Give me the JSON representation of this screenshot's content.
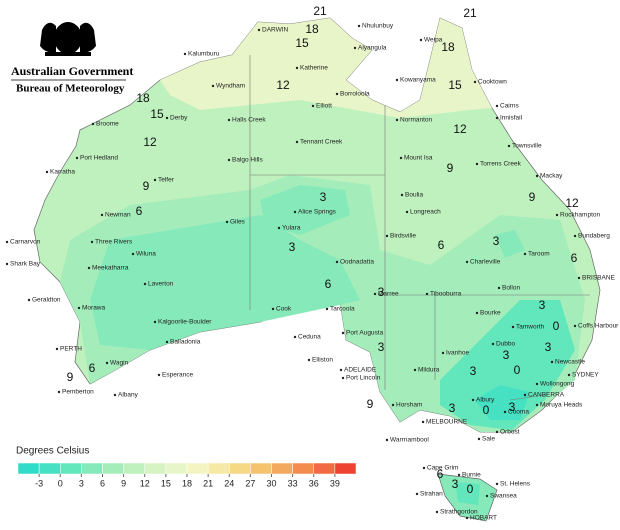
{
  "header": {
    "government": "Australian Government",
    "bureau": "Bureau of Meteorology"
  },
  "legend": {
    "title": "Degrees Celsius",
    "colors": [
      "#2fdcc8",
      "#45e1c2",
      "#62e6bb",
      "#86e9b9",
      "#a4edbb",
      "#bff1bf",
      "#d6f3c4",
      "#e8f5c8",
      "#f4f4c2",
      "#f6e9a3",
      "#f5d985",
      "#f5c36e",
      "#f4aa5e",
      "#f48c4f",
      "#f26a41",
      "#ee4332"
    ],
    "ticks": [
      -3,
      0,
      3,
      6,
      9,
      12,
      15,
      18,
      21,
      24,
      27,
      30,
      33,
      36,
      39
    ]
  },
  "places": [
    "DARWIN",
    "Nhulunbuy",
    "Alyangula",
    "Katherine",
    "Kalumburu",
    "Wyndham",
    "Weipa",
    "Kowanyama",
    "Cooktown",
    "Borroloola",
    "Elliott",
    "Normanton",
    "Cairns",
    "Innisfail",
    "Broome",
    "Derby",
    "Halls Creek",
    "Tennant Creek",
    "Townsville",
    "Port Hedland",
    "Balgo Hills",
    "Mount Isa",
    "Torrens Creek",
    "Mackay",
    "Karratha",
    "Telfer",
    "Boulia",
    "Rockhampton",
    "Newman",
    "Giles",
    "Alice Springs",
    "Longreach",
    "Yulara",
    "Bundaberg",
    "Three Rivers",
    "Wiluna",
    "Birdsville",
    "Charleville",
    "Taroom",
    "Carnarvon",
    "Shark Bay",
    "Meekatharra",
    "Oodnadatta",
    "Bollon",
    "BRISBANE",
    "Laverton",
    "Tibooburra",
    "Marree",
    "Geraldton",
    "Morawa",
    "Cook",
    "Tarcoola",
    "Bourke",
    "Tamworth",
    "Coffs Harbour",
    "Kalgoorlie-Boulder",
    "Port Augusta",
    "Balladonia",
    "Ivanhoe",
    "Dubbo",
    "Ceduna",
    "PERTH",
    "Newcastle",
    "Wagin",
    "Mildura",
    "SYDNEY",
    "Elliston",
    "Esperance",
    "Wollongong",
    "ADELAIDE",
    "Port Lincoln",
    "Pemberton",
    "Albury",
    "CANBERRA",
    "Moruya Heads",
    "Albany",
    "Horsham",
    "Cooma",
    "MELBOURNE",
    "Sale",
    "Orbost",
    "Warrnambool",
    "Cape Grim",
    "Burnie",
    "St. Helens",
    "Strahan",
    "Swansea",
    "Strathgordon",
    "HOBART"
  ],
  "contour_labels": [
    21,
    21,
    18,
    18,
    15,
    15,
    12,
    18,
    15,
    12,
    12,
    9,
    12,
    9,
    9,
    6,
    3,
    3,
    3,
    6,
    6,
    6,
    3,
    3,
    0,
    3,
    3,
    0,
    3,
    3,
    0,
    3,
    3,
    9,
    6,
    9,
    6,
    3,
    0
  ]
}
